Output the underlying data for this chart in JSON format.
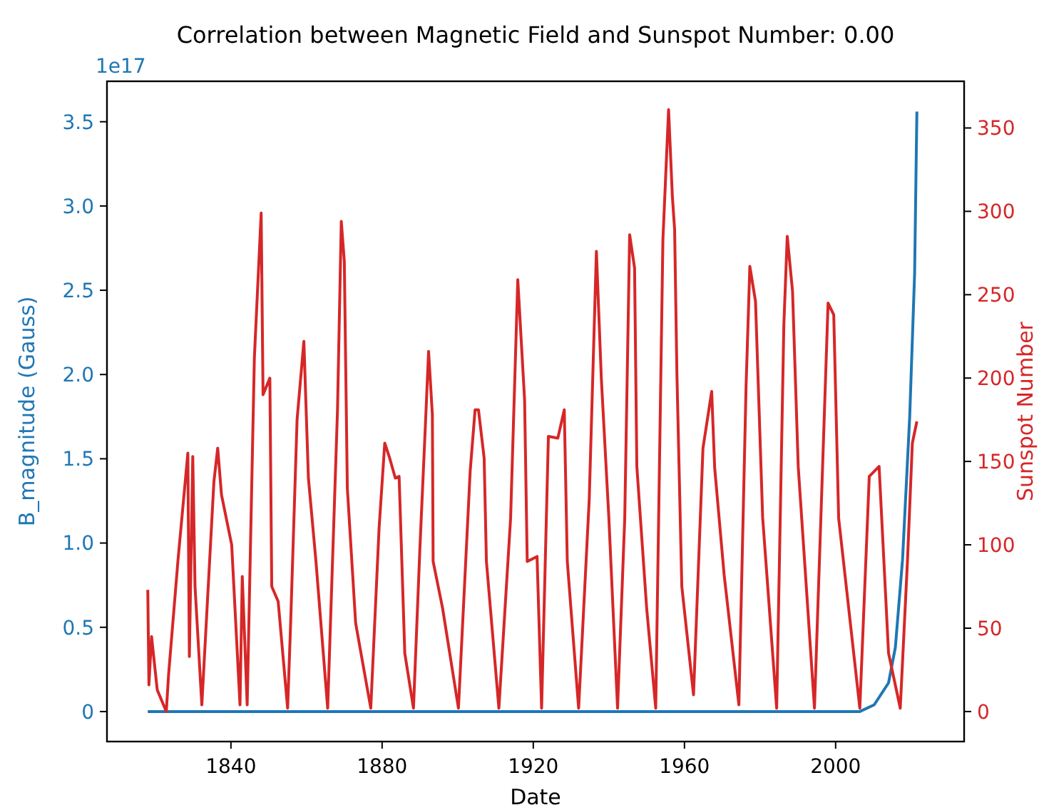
{
  "chart_data": {
    "type": "line",
    "title": "Correlation between Magnetic Field and Sunspot Number: 0.00",
    "xlabel": "Date",
    "ylabel": "B_magnitude (Gauss)",
    "y2label": "Sunspot Number",
    "annotations": [
      "1e17"
    ],
    "xlim": [
      1807.2,
      2034
    ],
    "xticks": [
      1840,
      1880,
      1920,
      1960,
      2000
    ],
    "ylim": [
      -0.178,
      3.74
    ],
    "yticks": [
      0,
      {
        "value": 0.5,
        "label": "0.5"
      },
      {
        "value": 1,
        "label": "1.0"
      },
      {
        "value": 1.5,
        "label": "1.5"
      },
      {
        "value": 2,
        "label": "2.0"
      },
      {
        "value": 2.5,
        "label": "2.5"
      },
      {
        "value": 3,
        "label": "3.0"
      },
      {
        "value": 3.5,
        "label": "3.5"
      }
    ],
    "y2lim": [
      -18,
      378
    ],
    "y2ticks": [
      0,
      50,
      100,
      150,
      200,
      250,
      300,
      350
    ],
    "line_style": "solid",
    "marker": "none",
    "series": [
      {
        "color": "#1f77b4",
        "x": [
          1818,
          1900,
          2006.4,
          2010.2,
          2014,
          2015.8,
          2017.7,
          2019.6,
          2020.9,
          2021.5
        ],
        "values": [
          0,
          0,
          0,
          0.04,
          0.17,
          0.38,
          0.9,
          1.75,
          2.6,
          3.56
        ]
      },
      {
        "color": "#d62728",
        "axis": "y2",
        "x": [
          1818,
          1818.3,
          1819,
          1820.5,
          1822.9,
          1823.5,
          1826,
          1828.6,
          1829,
          1829.9,
          1830.5,
          1832.3,
          1835.5,
          1836.5,
          1837.5,
          1840.2,
          1842.4,
          1843,
          1844.3,
          1846.2,
          1848,
          1848.5,
          1850.3,
          1850.8,
          1852.5,
          1855,
          1855.8,
          1857.5,
          1859.3,
          1860.5,
          1862.5,
          1865.6,
          1868.2,
          1869.2,
          1870,
          1870.8,
          1873,
          1877,
          1879.2,
          1880.7,
          1882,
          1883.5,
          1884.5,
          1886,
          1888.3,
          1890,
          1891.4,
          1892.3,
          1893.3,
          1893.5,
          1896,
          1900.2,
          1903.3,
          1904.6,
          1905.5,
          1907,
          1907.6,
          1910.9,
          1914,
          1915.9,
          1917.7,
          1918.4,
          1921,
          1922.2,
          1924,
          1926.5,
          1928.2,
          1929,
          1932,
          1934.8,
          1936.7,
          1938,
          1940,
          1942.3,
          1944.2,
          1945.5,
          1946.8,
          1947.4,
          1950,
          1952.4,
          1954.3,
          1955.8,
          1956.8,
          1957.4,
          1958,
          1959.3,
          1962.4,
          1964.9,
          1967.2,
          1968,
          1970.5,
          1974.4,
          1976.3,
          1977.3,
          1978.8,
          1980.7,
          1984.4,
          1986.3,
          1987.2,
          1988.6,
          1990.1,
          1994.4,
          1996.3,
          1998,
          1999.5,
          2000.8,
          2006.4,
          2008.9,
          2011.5,
          2014,
          2017.1,
          2019,
          2020.3,
          2021.5
        ],
        "values": [
          73,
          16,
          45,
          13,
          0,
          22,
          91,
          155,
          33,
          153,
          75,
          4,
          138,
          158,
          130,
          100,
          4,
          81,
          4,
          212,
          299,
          190,
          200,
          75,
          66,
          2,
          53,
          175,
          222,
          140,
          90,
          2,
          181,
          294,
          270,
          134,
          53,
          2,
          110,
          161,
          152,
          140,
          141,
          35,
          2,
          98,
          169,
          216,
          178,
          90,
          62,
          2,
          144,
          181,
          181,
          152,
          90,
          2,
          116,
          259,
          187,
          90,
          93,
          2,
          165,
          164,
          181,
          90,
          2,
          127,
          276,
          200,
          116,
          2,
          116,
          286,
          266,
          147,
          62,
          2,
          283,
          361,
          309,
          289,
          203,
          75,
          10,
          158,
          192,
          146,
          82,
          4,
          195,
          267,
          246,
          116,
          2,
          232,
          285,
          252,
          147,
          2,
          130,
          245,
          238,
          116,
          2,
          141,
          147,
          35,
          2,
          90,
          161,
          174
        ]
      }
    ]
  }
}
